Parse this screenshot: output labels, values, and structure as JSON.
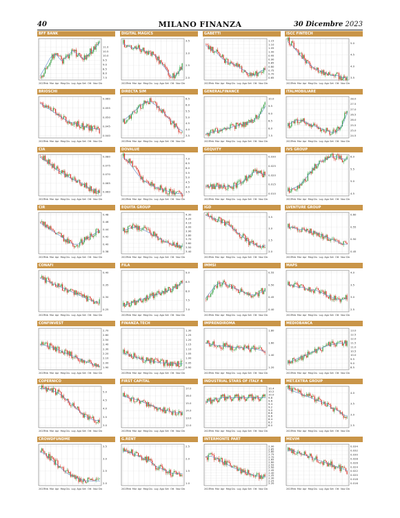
{
  "page": {
    "number": "40",
    "title": "MILANO FINANZA",
    "date_day": "30 Dicembre",
    "date_year": "2023"
  },
  "months": [
    "2023",
    "Feb",
    "Mar",
    "Apr",
    "Mag",
    "Giu",
    "Lug",
    "Ago",
    "Set",
    "Ott",
    "Nov",
    "Dic"
  ],
  "colors": {
    "up": "#2e9b3a",
    "down": "#d62b1f",
    "ma": "#5c86c6",
    "title_bar": "#c99548",
    "grid": "#c8c8c8"
  },
  "chart_data": [
    {
      "type": "candlestick",
      "title": "BFF BANK",
      "trend": [
        7.5,
        8.6,
        9.8,
        10.2,
        9.4,
        9.9,
        10.6,
        10.1,
        9.6,
        10.3,
        10.9,
        11.7
      ],
      "ytick_labels": [
        "11.0",
        "10.5",
        "10.0",
        "9.5",
        "9.0",
        "8.5",
        "8.0",
        "7.5"
      ]
    },
    {
      "type": "candlestick",
      "title": "DIGITAL MAGICS",
      "trend": [
        3.4,
        3.3,
        3.2,
        3.2,
        3.1,
        3.0,
        2.9,
        2.6,
        2.3,
        2.0,
        2.2,
        2.5
      ],
      "ytick_labels": [
        "3.5",
        "3.0",
        "2.5",
        "2.0"
      ]
    },
    {
      "type": "candlestick",
      "title": "GABETTI",
      "trend": [
        1.1,
        1.04,
        1.0,
        0.92,
        0.86,
        0.84,
        0.8,
        0.75,
        0.7,
        0.68,
        0.74,
        0.78
      ],
      "ytick_labels": [
        "1.15",
        "1.10",
        "1.05",
        "1.00",
        "0.95",
        "0.90",
        "0.85",
        "0.80",
        "0.75",
        "0.70",
        "0.65"
      ]
    },
    {
      "type": "candlestick",
      "title": "ISCC FINTECH",
      "trend": [
        5.1,
        4.9,
        4.6,
        4.3,
        4.1,
        3.9,
        3.8,
        3.7,
        3.6,
        3.6,
        3.5,
        3.5
      ],
      "ytick_labels": [
        "5.0",
        "4.5",
        "4.0",
        "3.5"
      ]
    },
    {
      "type": "candlestick",
      "title": "BRIOSCHI",
      "trend": [
        0.058,
        0.056,
        0.054,
        0.052,
        0.05,
        0.048,
        0.047,
        0.046,
        0.045,
        0.044,
        0.044,
        0.043
      ],
      "ytick_labels": [
        "0.060",
        "0.055",
        "0.050",
        "0.045",
        "0.040"
      ]
    },
    {
      "type": "candlestick",
      "title": "DIRECTA SIM",
      "trend": [
        4.6,
        5.0,
        5.4,
        5.8,
        6.2,
        6.3,
        6.0,
        5.6,
        5.1,
        4.6,
        4.1,
        3.8
      ],
      "ytick_labels": [
        "6.5",
        "6.0",
        "5.5",
        "5.0",
        "4.5",
        "4.0",
        "3.5"
      ]
    },
    {
      "type": "candlestick",
      "title": "GENERALFINANCE",
      "trend": [
        7.6,
        7.7,
        7.8,
        7.9,
        8.0,
        8.1,
        8.2,
        8.3,
        8.4,
        8.6,
        9.0,
        9.6
      ],
      "ytick_labels": [
        "10.0",
        "9.5",
        "9.0",
        "8.5",
        "8.0",
        "7.5"
      ]
    },
    {
      "type": "candlestick",
      "title": "ITALMOBILIARE",
      "trend": [
        25.4,
        25.8,
        26.0,
        25.9,
        25.6,
        25.4,
        25.2,
        25.0,
        24.8,
        24.9,
        25.6,
        27.0
      ],
      "ytick_labels": [
        "28.0",
        "27.5",
        "27.0",
        "26.5",
        "26.0",
        "25.5",
        "25.0",
        "24.5"
      ]
    },
    {
      "type": "candlestick",
      "title": "CIA",
      "trend": [
        0.08,
        0.078,
        0.076,
        0.073,
        0.071,
        0.069,
        0.067,
        0.066,
        0.064,
        0.062,
        0.061,
        0.059
      ],
      "ytick_labels": [
        "0.080",
        "0.075",
        "0.070",
        "0.065",
        "0.060"
      ]
    },
    {
      "type": "candlestick",
      "title": "DOVALUE",
      "trend": [
        7.2,
        6.8,
        6.0,
        5.2,
        4.6,
        4.3,
        4.0,
        3.8,
        3.6,
        3.4,
        3.3,
        3.3
      ],
      "ytick_labels": [
        "7.0",
        "6.5",
        "6.0",
        "5.5",
        "5.0",
        "4.5",
        "4.0",
        "3.5"
      ]
    },
    {
      "type": "candlestick",
      "title": "GEQUITY",
      "trend": [
        0.014,
        0.014,
        0.014,
        0.014,
        0.014,
        0.014,
        0.015,
        0.017,
        0.02,
        0.022,
        0.021,
        0.02
      ],
      "ytick_labels": [
        "0.030",
        "0.025",
        "0.020",
        "0.015",
        "0.010"
      ]
    },
    {
      "type": "candlestick",
      "title": "IVS GROUP",
      "trend": [
        4.6,
        4.7,
        4.8,
        5.0,
        5.3,
        5.6,
        5.8,
        5.9,
        6.0,
        6.0,
        5.9,
        5.9
      ],
      "ytick_labels": [
        "6.0",
        "5.5",
        "5.0",
        "4.5"
      ]
    },
    {
      "type": "candlestick",
      "title": "CIR",
      "trend": [
        0.46,
        0.45,
        0.44,
        0.43,
        0.42,
        0.41,
        0.4,
        0.4,
        0.41,
        0.42,
        0.43,
        0.44
      ],
      "ytick_labels": [
        "0.48",
        "0.46",
        "0.44",
        "0.42",
        "0.40",
        "0.38"
      ]
    },
    {
      "type": "candlestick",
      "title": "EQUITA GROUP",
      "trend": [
        3.9,
        3.95,
        4.0,
        3.98,
        3.92,
        3.85,
        3.78,
        3.7,
        3.62,
        3.58,
        3.55,
        3.52
      ],
      "ytick_labels": [
        "4.30",
        "4.20",
        "4.10",
        "4.00",
        "3.90",
        "3.80",
        "3.70",
        "3.60",
        "3.50",
        "3.40"
      ]
    },
    {
      "type": "candlestick",
      "title": "IGD",
      "trend": [
        3.6,
        3.5,
        3.4,
        3.3,
        3.2,
        3.0,
        2.8,
        2.6,
        2.4,
        2.3,
        2.2,
        2.3
      ],
      "ytick_labels": [
        "3.5",
        "3.0",
        "2.5",
        "2.0"
      ]
    },
    {
      "type": "candlestick",
      "title": "LVENTURE GROUP",
      "trend": [
        0.55,
        0.55,
        0.54,
        0.54,
        0.53,
        0.53,
        0.52,
        0.51,
        0.5,
        0.49,
        0.48,
        0.48
      ],
      "ytick_labels": [
        "0.60",
        "0.55",
        "0.50",
        "0.45"
      ]
    },
    {
      "type": "candlestick",
      "title": "CONAFI",
      "trend": [
        0.38,
        0.37,
        0.36,
        0.35,
        0.34,
        0.33,
        0.32,
        0.31,
        0.3,
        0.29,
        0.28,
        0.28
      ],
      "ytick_labels": [
        "0.40",
        "0.35",
        "0.30",
        "0.25"
      ]
    },
    {
      "type": "candlestick",
      "title": "FILA",
      "trend": [
        7.2,
        7.3,
        7.4,
        7.5,
        7.6,
        7.7,
        7.8,
        7.9,
        8.0,
        8.1,
        8.3,
        8.5
      ],
      "ytick_labels": [
        "9.0",
        "8.5",
        "8.0",
        "7.5",
        "7.0"
      ]
    },
    {
      "type": "candlestick",
      "title": "IMMSI",
      "trend": [
        0.44,
        0.47,
        0.5,
        0.51,
        0.5,
        0.49,
        0.48,
        0.47,
        0.46,
        0.46,
        0.47,
        0.48
      ],
      "ytick_labels": [
        "0.55",
        "0.50",
        "0.45",
        "0.40"
      ]
    },
    {
      "type": "candlestick",
      "title": "MAPS",
      "trend": [
        3.5,
        3.5,
        3.4,
        3.4,
        3.3,
        3.3,
        3.2,
        3.1,
        3.0,
        2.9,
        2.9,
        3.0
      ],
      "ytick_labels": [
        "4.0",
        "3.5",
        "3.0",
        "2.5"
      ]
    },
    {
      "type": "candlestick",
      "title": "CONFINVEST",
      "trend": [
        2.4,
        2.38,
        2.35,
        2.3,
        2.25,
        2.2,
        2.15,
        2.1,
        2.05,
        2.0,
        1.95,
        1.92
      ],
      "ytick_labels": [
        "2.70",
        "2.60",
        "2.50",
        "2.40",
        "2.30",
        "2.20",
        "2.10",
        "2.00",
        "1.90"
      ]
    },
    {
      "type": "candlestick",
      "title": "FINANZA.TECH",
      "trend": [
        1.06,
        1.04,
        1.02,
        1.0,
        0.98,
        0.97,
        0.96,
        0.95,
        0.95,
        0.94,
        0.94,
        0.94
      ],
      "ytick_labels": [
        "1.30",
        "1.25",
        "1.20",
        "1.15",
        "1.10",
        "1.05",
        "1.00",
        "0.95",
        "0.90"
      ]
    },
    {
      "type": "candlestick",
      "title": "IMPRENDIROMA",
      "trend": [
        1.6,
        1.58,
        1.56,
        1.55,
        1.54,
        1.53,
        1.52,
        1.52,
        1.51,
        1.5,
        1.48,
        1.45
      ],
      "ytick_labels": [
        "1.80",
        "1.60",
        "1.40",
        "1.20"
      ]
    },
    {
      "type": "candlestick",
      "title": "MEDIOBANCA",
      "trend": [
        9.0,
        9.3,
        9.6,
        9.9,
        10.2,
        10.5,
        10.8,
        11.1,
        11.3,
        11.4,
        11.5,
        11.5
      ],
      "ytick_labels": [
        "13.0",
        "12.5",
        "12.0",
        "11.5",
        "11.0",
        "10.5",
        "10.0",
        "9.5",
        "9.0",
        "8.5"
      ]
    },
    {
      "type": "candlestick",
      "title": "COPERNICO",
      "trend": [
        5.2,
        5.2,
        5.1,
        5.0,
        4.8,
        4.5,
        4.2,
        3.9,
        3.6,
        3.4,
        3.3,
        3.3
      ],
      "ytick_labels": [
        "5.0",
        "4.5",
        "4.0",
        "3.5",
        "3.0"
      ]
    },
    {
      "type": "candlestick",
      "title": "FIRST CAPITAL",
      "trend": [
        16.0,
        15.8,
        15.6,
        15.4,
        15.1,
        14.8,
        14.5,
        14.2,
        14.0,
        13.8,
        13.7,
        13.7
      ],
      "ytick_labels": [
        "17.0",
        "16.0",
        "15.0",
        "14.0",
        "13.0",
        "12.0"
      ]
    },
    {
      "type": "candlestick",
      "title": "INDUSTRIAL STARS OF ITALY 4",
      "trend": [
        9.5,
        9.6,
        9.7,
        9.8,
        9.8,
        9.8,
        9.8,
        9.8,
        9.8,
        9.8,
        9.8,
        9.8
      ],
      "ytick_labels": [
        "10.4",
        "10.2",
        "10.0",
        "9.8",
        "9.6",
        "9.4",
        "9.2",
        "9.0",
        "8.8",
        "8.6",
        "8.4",
        "8.2",
        "8.0"
      ]
    },
    {
      "type": "candlestick",
      "title": "MET.EXTRA GROUP",
      "trend": [
        4.2,
        4.1,
        4.0,
        3.9,
        3.8,
        3.7,
        3.6,
        3.5,
        3.3,
        3.2,
        3.0,
        2.9
      ],
      "ytick_labels": [
        "4.0",
        "3.5",
        "3.0",
        "2.5"
      ]
    },
    {
      "type": "candlestick",
      "title": "CROWDFUNDME",
      "trend": [
        3.3,
        3.2,
        3.0,
        2.8,
        2.6,
        2.4,
        2.3,
        2.2,
        2.1,
        2.1,
        2.1,
        2.1
      ],
      "ytick_labels": [
        "3.5",
        "3.0",
        "2.5",
        "2.0"
      ]
    },
    {
      "type": "candlestick",
      "title": "G.RENT",
      "trend": [
        2.3,
        2.3,
        2.2,
        2.1,
        2.0,
        1.9,
        1.7,
        1.6,
        1.5,
        1.4,
        1.4,
        1.4
      ],
      "ytick_labels": [
        "2.5",
        "2.0",
        "1.5",
        "1.0"
      ]
    },
    {
      "type": "candlestick",
      "title": "INTERMONTE PART",
      "trend": [
        2.7,
        2.72,
        2.68,
        2.62,
        2.56,
        2.5,
        2.46,
        2.42,
        2.38,
        2.35,
        2.33,
        2.32
      ],
      "ytick_labels": [
        "2.90",
        "2.85",
        "2.80",
        "2.75",
        "2.70",
        "2.65",
        "2.60",
        "2.55",
        "2.50",
        "2.45",
        "2.40",
        "2.35",
        "2.30",
        "2.25",
        "2.20"
      ]
    },
    {
      "type": "candlestick",
      "title": "MEVIM",
      "trend": [
        0.032,
        0.032,
        0.031,
        0.03,
        0.029,
        0.028,
        0.027,
        0.026,
        0.025,
        0.024,
        0.023,
        0.022
      ],
      "ytick_labels": [
        "0.034",
        "0.032",
        "0.030",
        "0.028",
        "0.026",
        "0.024",
        "0.022",
        "0.020",
        "0.018",
        "0.016"
      ]
    }
  ]
}
